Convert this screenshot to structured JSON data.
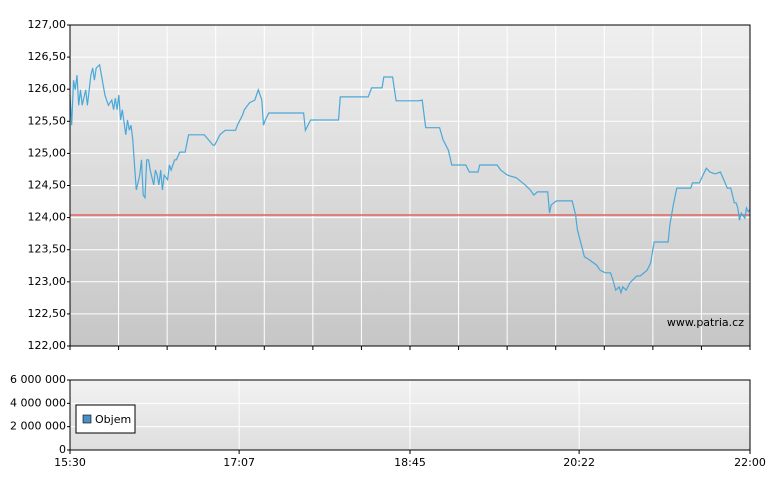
{
  "chart_data": [
    {
      "type": "line",
      "x": [
        "15:30",
        "15:31",
        "15:32",
        "15:33",
        "15:34",
        "15:35",
        "15:36",
        "15:37",
        "15:39",
        "15:40",
        "15:41",
        "15:42",
        "15:43",
        "15:44",
        "15:45",
        "15:47",
        "15:48",
        "15:49",
        "15:50",
        "15:51",
        "15:52",
        "15:54",
        "15:55",
        "15:56",
        "15:57",
        "15:58",
        "15:59",
        "16:00",
        "16:02",
        "16:03",
        "16:04",
        "16:05",
        "16:06",
        "16:07",
        "16:08",
        "16:10",
        "16:11",
        "16:12",
        "16:13",
        "16:14",
        "16:15",
        "16:16",
        "16:18",
        "16:19",
        "16:20",
        "16:21",
        "16:22",
        "16:23",
        "16:24",
        "16:26",
        "16:27",
        "16:28",
        "16:29",
        "16:30",
        "16:31",
        "16:33",
        "16:36",
        "16:38",
        "16:47",
        "16:52",
        "16:53",
        "16:56",
        "16:59",
        "17:02",
        "17:05",
        "17:06",
        "17:09",
        "17:10",
        "17:13",
        "17:16",
        "17:18",
        "17:20",
        "17:21",
        "17:22",
        "17:24",
        "17:44",
        "17:45",
        "17:48",
        "18:04",
        "18:05",
        "18:21",
        "18:23",
        "18:29",
        "18:30",
        "18:35",
        "18:37",
        "18:50",
        "18:52",
        "18:54",
        "19:02",
        "19:04",
        "19:07",
        "19:09",
        "19:17",
        "19:19",
        "19:24",
        "19:25",
        "19:35",
        "19:37",
        "19:41",
        "19:46",
        "19:51",
        "19:54",
        "19:56",
        "19:58",
        "20:04",
        "20:05",
        "20:06",
        "20:09",
        "20:18",
        "20:20",
        "20:21",
        "20:24",
        "20:25",
        "20:28",
        "20:32",
        "20:34",
        "20:37",
        "20:40",
        "20:41",
        "20:43",
        "20:45",
        "20:46",
        "20:47",
        "20:49",
        "20:51",
        "20:55",
        "20:57",
        "21:01",
        "21:03",
        "21:05",
        "21:13",
        "21:14",
        "21:16",
        "21:18",
        "21:26",
        "21:27",
        "21:31",
        "21:33",
        "21:35",
        "21:37",
        "21:40",
        "21:43",
        "21:45",
        "21:47",
        "21:49",
        "21:51",
        "21:52",
        "21:53",
        "21:54",
        "21:55",
        "21:57",
        "21:58",
        "21:59",
        "22:00"
      ],
      "series": [
        {
          "color": "#4aa8d8",
          "values": [
            125.91,
            125.44,
            126.14,
            125.99,
            126.22,
            125.75,
            125.99,
            125.75,
            125.99,
            125.75,
            125.99,
            126.22,
            126.33,
            126.14,
            126.33,
            126.38,
            126.22,
            126.07,
            125.91,
            125.83,
            125.75,
            125.83,
            125.68,
            125.86,
            125.68,
            125.91,
            125.52,
            125.68,
            125.29,
            125.52,
            125.36,
            125.44,
            125.21,
            124.82,
            124.43,
            124.66,
            124.9,
            124.35,
            124.31,
            124.9,
            124.9,
            124.74,
            124.51,
            124.74,
            124.66,
            124.51,
            124.74,
            124.43,
            124.66,
            124.59,
            124.82,
            124.74,
            124.82,
            124.9,
            124.9,
            125.02,
            125.02,
            125.29,
            125.29,
            125.13,
            125.13,
            125.29,
            125.36,
            125.36,
            125.36,
            125.44,
            125.6,
            125.68,
            125.79,
            125.83,
            125.99,
            125.83,
            125.44,
            125.52,
            125.63,
            125.63,
            125.36,
            125.52,
            125.52,
            125.88,
            125.88,
            126.02,
            126.02,
            126.19,
            126.19,
            125.82,
            125.82,
            125.83,
            125.4,
            125.4,
            125.21,
            125.05,
            124.82,
            124.82,
            124.71,
            124.71,
            124.82,
            124.82,
            124.74,
            124.66,
            124.62,
            124.51,
            124.43,
            124.35,
            124.4,
            124.4,
            124.07,
            124.2,
            124.26,
            124.26,
            124.04,
            123.81,
            123.5,
            123.39,
            123.34,
            123.26,
            123.18,
            123.14,
            123.14,
            123.06,
            122.87,
            122.92,
            122.83,
            122.92,
            122.87,
            122.98,
            123.09,
            123.09,
            123.18,
            123.29,
            123.62,
            123.62,
            123.88,
            124.2,
            124.46,
            124.46,
            124.54,
            124.54,
            124.66,
            124.77,
            124.71,
            124.68,
            124.71,
            124.59,
            124.46,
            124.46,
            124.23,
            124.23,
            124.15,
            123.96,
            124.07,
            123.99,
            124.15,
            124.09,
            124.13
          ]
        }
      ],
      "reference_line": {
        "value": 124.04,
        "color": "#e06060"
      },
      "xlim": [
        "15:30",
        "22:00"
      ],
      "ylim": [
        122,
        127
      ],
      "yticks": [
        {
          "value": 122,
          "label": "122,00"
        },
        {
          "value": 122.5,
          "label": "122,50"
        },
        {
          "value": 123,
          "label": "123,00"
        },
        {
          "value": 123.5,
          "label": "123,50"
        },
        {
          "value": 124,
          "label": "124,00"
        },
        {
          "value": 124.5,
          "label": "124,50"
        },
        {
          "value": 125,
          "label": "125,00"
        },
        {
          "value": 125.5,
          "label": "125,50"
        },
        {
          "value": 126,
          "label": "126,00"
        },
        {
          "value": 126.5,
          "label": "126,50"
        },
        {
          "value": 127,
          "label": "127,00"
        }
      ],
      "grid": true,
      "watermark": "www.patria.cz"
    },
    {
      "type": "bar",
      "x": [
        "18:44",
        "18:45",
        "18:46",
        "20:21",
        "20:22"
      ],
      "series": [
        {
          "name": "Objem",
          "color": "#4a90c8",
          "values": [
            30000,
            40000,
            30000,
            20000,
            20000
          ]
        }
      ],
      "xlim": [
        "15:30",
        "22:00"
      ],
      "xticks": [
        "15:30",
        "17:07",
        "18:45",
        "20:22",
        "22:00"
      ],
      "ylim": [
        0,
        6000000
      ],
      "yticks": [
        0,
        {
          "value": 2000000,
          "label": "2 000 000"
        },
        {
          "value": 4000000,
          "label": "4 000 000"
        },
        {
          "value": 6000000,
          "label": "6 000 000"
        }
      ],
      "grid": true,
      "legend": "left"
    }
  ]
}
